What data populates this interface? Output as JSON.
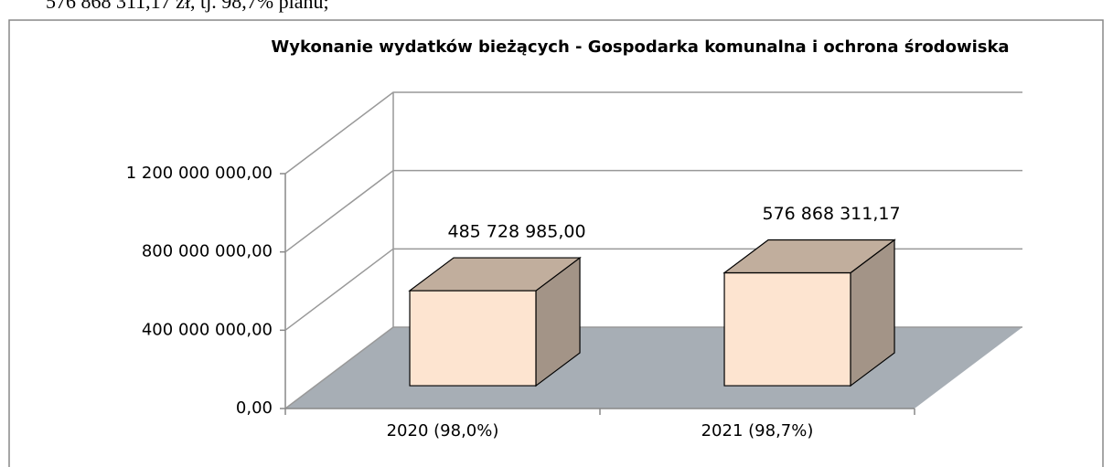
{
  "page_text": "576 868 311,17 zł, tj. 98,7% planu;",
  "chart_data": {
    "type": "bar3d",
    "title": "Wykonanie wydatków bieżących - Gospodarka komunalna i ochrona środowiska",
    "categories": [
      "2020 (98,0%)",
      "2021 (98,7%)"
    ],
    "values": [
      485728985.0,
      576868311.17
    ],
    "value_labels": [
      "485 728 985,00",
      "576 868 311,17"
    ],
    "colors": {
      "front": "#fde4d0",
      "top": "#c1ae9d",
      "side": "#a39487",
      "floor": "#a7aeb5"
    },
    "ylim": [
      0,
      1200000000
    ],
    "yticks": [
      {
        "value": 0,
        "label": "0,00"
      },
      {
        "value": 400000000,
        "label": "400 000 000,00"
      },
      {
        "value": 800000000,
        "label": "800 000 000,00"
      },
      {
        "value": 1200000000,
        "label": "1 200 000 000,00"
      }
    ],
    "grid": true
  }
}
